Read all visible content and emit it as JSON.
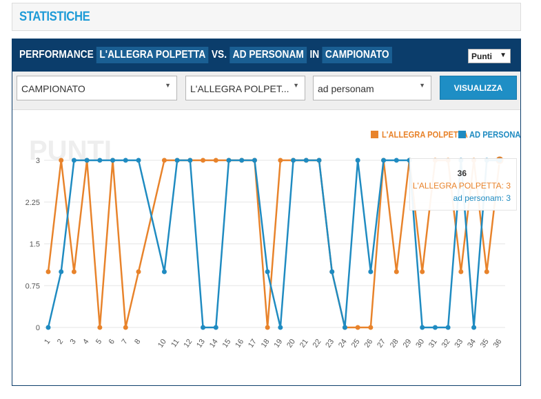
{
  "section_title": "STATISTICHE",
  "panel": {
    "title_prefix": "PERFORMANCE",
    "team_a": "L'ALLEGRA POLPETTA",
    "vs": "VS.",
    "team_b": "AD PERSONAM",
    "in": "IN",
    "competition": "CAMPIONATO",
    "metric_select": "Punti"
  },
  "filters": {
    "competition": "CAMPIONATO",
    "team_a": "L'ALLEGRA POLPET...",
    "team_b": "ad personam",
    "submit_label": "VISUALIZZA"
  },
  "tooltip": {
    "title": "36",
    "line_a": "L'ALLEGRA POLPETTA: 3",
    "line_b": "ad personam: 3"
  },
  "colors": {
    "team_a": "#e8832b",
    "team_b": "#1f8bc1",
    "header_bg": "#0b3d6b"
  },
  "chart_data": {
    "type": "line",
    "watermark": "PUNTI",
    "x": [
      "1",
      "2",
      "3",
      "4",
      "5",
      "6",
      "7",
      "8",
      "10",
      "11",
      "12",
      "13",
      "14",
      "15",
      "16",
      "17",
      "18",
      "19",
      "20",
      "21",
      "22",
      "23",
      "24",
      "25",
      "26",
      "27",
      "28",
      "29",
      "30",
      "31",
      "32",
      "33",
      "34",
      "35",
      "36"
    ],
    "yticks": [
      "0",
      "0.75",
      "1.5",
      "2.25",
      "3"
    ],
    "ylim": [
      0,
      3
    ],
    "grid": true,
    "legend_position": "top-right",
    "series": [
      {
        "name": "L'ALLEGRA POLPETTA",
        "color": "#e8832b",
        "values": [
          1,
          3,
          1,
          3,
          0,
          3,
          0,
          1,
          3,
          3,
          3,
          3,
          3,
          3,
          3,
          3,
          0,
          3,
          3,
          3,
          3,
          1,
          0,
          0,
          0,
          3,
          1,
          3,
          1,
          3,
          3,
          1,
          3,
          1,
          3
        ]
      },
      {
        "name": "AD PERSONAM",
        "color": "#1f8bc1",
        "values": [
          0,
          1,
          3,
          3,
          3,
          3,
          3,
          3,
          1,
          3,
          3,
          0,
          0,
          3,
          3,
          3,
          1,
          0,
          3,
          3,
          3,
          1,
          0,
          3,
          1,
          3,
          3,
          3,
          0,
          0,
          0,
          3,
          0,
          3,
          3
        ]
      }
    ]
  }
}
